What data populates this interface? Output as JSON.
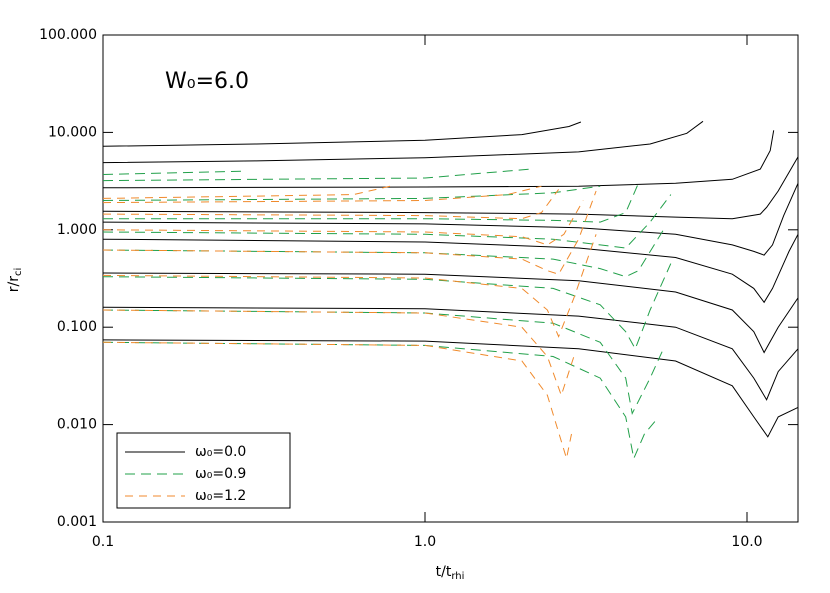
{
  "chart_data": {
    "type": "line",
    "annotation": "W₀=6.0",
    "xlabel": {
      "text": "t/t",
      "sub": "rhi"
    },
    "ylabel": {
      "text": "r/r",
      "sub": "ci"
    },
    "xscale": "log",
    "yscale": "log",
    "xlim": [
      0.1,
      14.4
    ],
    "ylim": [
      0.001,
      100
    ],
    "xticks": [
      0.1,
      {
        "value": 1,
        "label": "1.0"
      },
      {
        "value": 10,
        "label": "10.0"
      }
    ],
    "yticks": [
      {
        "value": 0.001,
        "label": "0.001"
      },
      {
        "value": 0.01,
        "label": "0.010"
      },
      {
        "value": 0.1,
        "label": "0.100"
      },
      {
        "value": 1,
        "label": "1.000"
      },
      {
        "value": 10,
        "label": "10.000"
      },
      {
        "value": 100,
        "label": "100.000"
      }
    ],
    "legend": "lower left",
    "series": [
      {
        "name": "ω₀=0.0",
        "color": "#000000",
        "line_style": "solid",
        "x": [
          0.1,
          0.3,
          1,
          2,
          2.8,
          3.05,
          null,
          0.1,
          0.3,
          1,
          3,
          5,
          6.5,
          7.3,
          null,
          0.1,
          1,
          3,
          6,
          9,
          11,
          11.8,
          12.1,
          null,
          0.1,
          1,
          3,
          6,
          9,
          11,
          11.5,
          12.5,
          14.4,
          null,
          0.1,
          1,
          3,
          6,
          9,
          10.5,
          11.3,
          12,
          13,
          14.4,
          null,
          0.1,
          1,
          3,
          6,
          9,
          10.5,
          11.3,
          12,
          13.5,
          14.4,
          null,
          0.1,
          1,
          3,
          6,
          9,
          10.5,
          11.3,
          12.5,
          14.4,
          null,
          0.1,
          1,
          3,
          6,
          9,
          10.5,
          11.5,
          12.5,
          14.4,
          null,
          0.1,
          1,
          3,
          6,
          9,
          10.5,
          11.6,
          12.5,
          14.4
        ],
        "values": [
          7.2,
          7.6,
          8.3,
          9.5,
          11.5,
          12.8,
          null,
          4.9,
          5.1,
          5.5,
          6.3,
          7.6,
          9.8,
          13.0,
          null,
          2.7,
          2.75,
          2.8,
          3.0,
          3.3,
          4.2,
          6.5,
          10.5,
          null,
          1.55,
          1.5,
          1.45,
          1.35,
          1.3,
          1.45,
          1.7,
          2.5,
          5.6,
          null,
          1.2,
          1.15,
          1.05,
          0.9,
          0.7,
          0.6,
          0.55,
          0.7,
          1.4,
          3.0,
          null,
          0.8,
          0.75,
          0.65,
          0.52,
          0.35,
          0.25,
          0.18,
          0.25,
          0.6,
          0.9,
          null,
          0.36,
          0.35,
          0.3,
          0.23,
          0.15,
          0.09,
          0.055,
          0.1,
          0.2,
          null,
          0.16,
          0.155,
          0.13,
          0.1,
          0.06,
          0.03,
          0.018,
          0.035,
          0.06,
          null,
          0.074,
          0.072,
          0.06,
          0.045,
          0.025,
          0.012,
          0.0075,
          0.012,
          0.015
        ]
      },
      {
        "name": "ω₀=0.9",
        "color": "#22a04a",
        "line_style": "dashed",
        "x": [
          0.1,
          0.27,
          null,
          0.1,
          1,
          2.13,
          null,
          0.1,
          1,
          2.5,
          3.5,
          null,
          0.1,
          1,
          2.5,
          3.5,
          4.2,
          4.6,
          null,
          0.1,
          1,
          2.5,
          3.5,
          4.2,
          5,
          5.8,
          null,
          0.1,
          1,
          2.5,
          3.5,
          4.2,
          4.6,
          5.6,
          null,
          0.1,
          1,
          2.5,
          3.5,
          4.2,
          4.5,
          5,
          5.8,
          null,
          0.1,
          1,
          2.5,
          3.5,
          4.2,
          4.4,
          5,
          5.5,
          null,
          0.1,
          1,
          2.5,
          3.5,
          4.2,
          4.45,
          4.8,
          5.2
        ],
        "values": [
          3.7,
          4.0,
          null,
          3.2,
          3.4,
          4.2,
          null,
          2.0,
          2.1,
          2.4,
          2.8,
          null,
          1.3,
          1.3,
          1.25,
          1.2,
          1.5,
          3.0,
          null,
          0.95,
          0.9,
          0.8,
          0.7,
          0.65,
          1.2,
          2.3,
          null,
          0.62,
          0.58,
          0.5,
          0.4,
          0.33,
          0.38,
          1.1,
          null,
          0.33,
          0.31,
          0.25,
          0.17,
          0.09,
          0.06,
          0.15,
          0.45,
          null,
          0.15,
          0.14,
          0.11,
          0.07,
          0.03,
          0.013,
          0.03,
          0.06,
          null,
          0.07,
          0.065,
          0.05,
          0.03,
          0.012,
          0.0045,
          0.008,
          0.011
        ]
      },
      {
        "name": "ω₀=1.2",
        "color": "#f08a2c",
        "line_style": "dashed",
        "x": [
          0.1,
          0.6,
          0.78,
          null,
          0.1,
          1,
          1.8,
          2.3,
          null,
          0.1,
          1,
          2,
          2.3,
          2.6,
          null,
          0.1,
          1,
          2,
          2.4,
          2.7,
          3.1,
          null,
          0.1,
          1,
          2,
          2.4,
          2.6,
          3.0,
          3.4,
          null,
          0.1,
          1,
          2,
          2.4,
          2.6,
          2.9,
          3.4,
          null,
          0.1,
          1,
          2,
          2.4,
          2.65,
          2.9,
          null,
          0.1,
          1,
          2,
          2.4,
          2.75,
          2.85
        ],
        "values": [
          2.1,
          2.3,
          2.8,
          null,
          1.9,
          2.0,
          2.3,
          2.8,
          null,
          1.45,
          1.4,
          1.3,
          1.5,
          2.6,
          null,
          1.0,
          0.95,
          0.85,
          0.7,
          0.9,
          2.0,
          null,
          0.62,
          0.58,
          0.5,
          0.38,
          0.35,
          0.8,
          2.5,
          null,
          0.34,
          0.32,
          0.25,
          0.15,
          0.08,
          0.2,
          0.9,
          null,
          0.15,
          0.14,
          0.1,
          0.05,
          0.02,
          0.05,
          null,
          0.07,
          0.065,
          0.045,
          0.02,
          0.0045,
          0.008
        ]
      }
    ]
  }
}
